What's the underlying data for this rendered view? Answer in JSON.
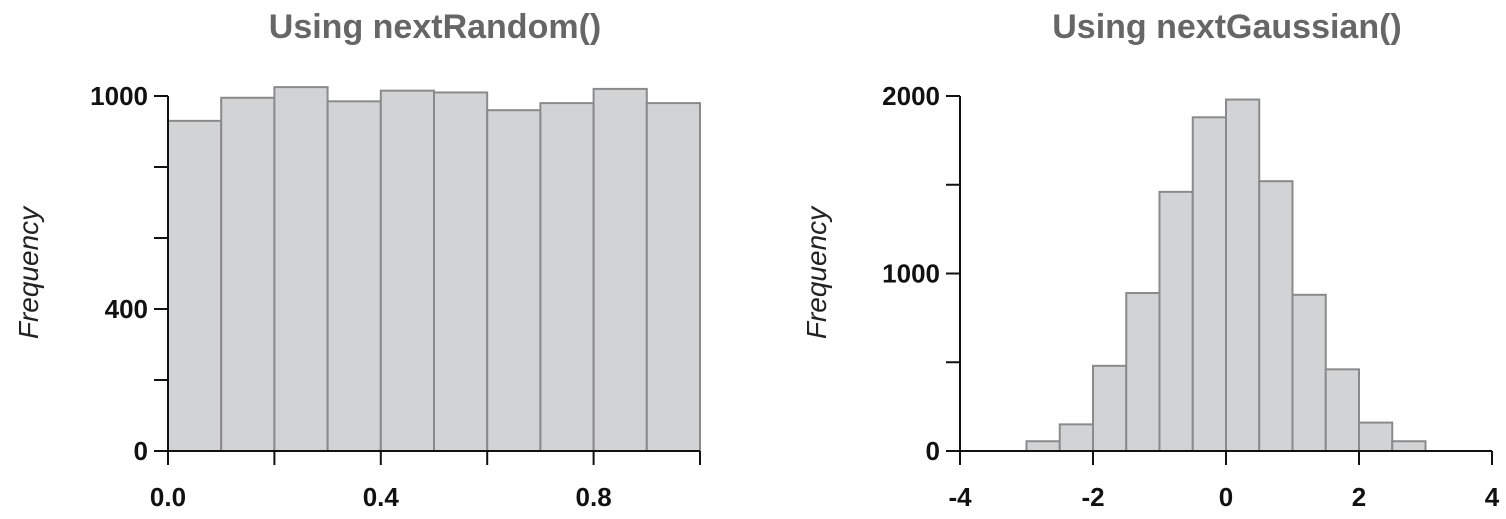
{
  "chart_data": [
    {
      "type": "bar",
      "title": "Using nextRandom()",
      "ylabel": "Frequency",
      "xlabel": "",
      "xlim": [
        0,
        1
      ],
      "ylim": [
        0,
        1000
      ],
      "x_ticks": [
        0.0,
        0.2,
        0.4,
        0.6,
        0.8,
        1.0
      ],
      "x_tick_labels": [
        "0.0",
        "",
        "0.4",
        "",
        "0.8",
        ""
      ],
      "y_ticks": [
        0,
        200,
        400,
        600,
        800,
        1000
      ],
      "y_tick_labels": [
        "0",
        "",
        "400",
        "",
        "",
        "1000"
      ],
      "bin_edges": [
        0.0,
        0.1,
        0.2,
        0.3,
        0.4,
        0.5,
        0.6,
        0.7,
        0.8,
        0.9,
        1.0
      ],
      "values": [
        930,
        995,
        1025,
        985,
        1015,
        1010,
        960,
        980,
        1020,
        980
      ],
      "grid": false,
      "bar_color": "#d2d3d5"
    },
    {
      "type": "bar",
      "title": "Using nextGaussian()",
      "ylabel": "Frequency",
      "xlabel": "",
      "xlim": [
        -4,
        4
      ],
      "ylim": [
        0,
        2000
      ],
      "x_ticks": [
        -4,
        -2,
        0,
        2,
        4
      ],
      "x_tick_labels": [
        "-4",
        "-2",
        "0",
        "2",
        "4"
      ],
      "y_ticks": [
        0,
        500,
        1000,
        1500,
        2000
      ],
      "y_tick_labels": [
        "0",
        "",
        "1000",
        "",
        "2000"
      ],
      "bin_edges": [
        -3.0,
        -2.5,
        -2.0,
        -1.5,
        -1.0,
        -0.5,
        0.0,
        0.5,
        1.0,
        1.5,
        2.0,
        2.5,
        3.0
      ],
      "values": [
        55,
        150,
        480,
        890,
        1460,
        1880,
        1980,
        1520,
        880,
        460,
        160,
        55
      ],
      "grid": false,
      "bar_color": "#d2d3d5"
    }
  ]
}
